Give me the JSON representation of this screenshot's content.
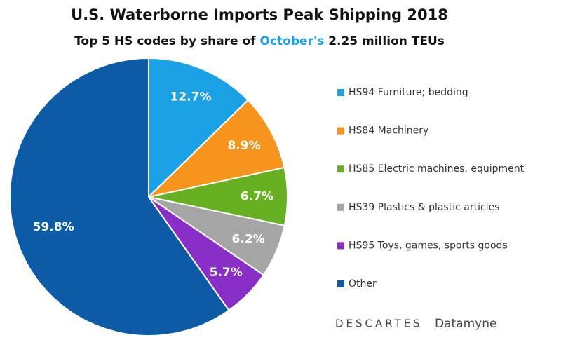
{
  "chart_data": {
    "type": "pie",
    "title": "U.S. Waterborne Imports Peak Shipping 2018",
    "subtitle": [
      "Top 5 HS codes by share of",
      "October's",
      "2.25 million TEUs"
    ],
    "categories": [
      "HS94 Furniture; bedding",
      "HS84 Machinery",
      "HS85 Electric machines, equipment",
      "HS39 Plastics & plastic articles",
      "HS95 Toys, games, sports goods",
      "Other"
    ],
    "values": [
      12.7,
      8.9,
      6.7,
      6.2,
      5.7,
      59.8
    ],
    "value_labels": [
      "12.7%",
      "8.9%",
      "6.7%",
      "6.2%",
      "5.7%",
      "59.8%"
    ],
    "colors": [
      "#1ba1e6",
      "#f7941d",
      "#67b021",
      "#a5a5a5",
      "#8a2ec8",
      "#0d5aa7"
    ],
    "legend": "right"
  },
  "logo": {
    "brand": "DESCARTES",
    "product": "Datamyne"
  }
}
